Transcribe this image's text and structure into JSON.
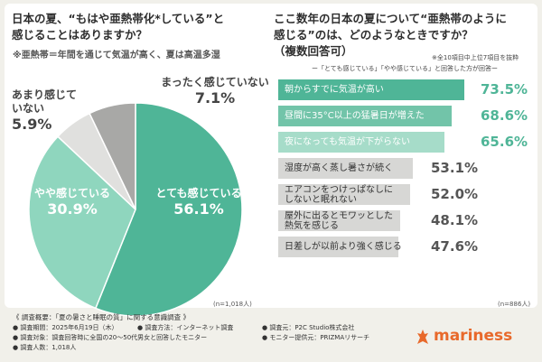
{
  "left": {
    "title_lines": [
      "日本の夏、“もはや亜熱帯化*している”と",
      "感じることはありますか？"
    ],
    "note": "※亜熱帯＝年間を通じて気温が高く、夏は高温多湿",
    "n": "(n=1,018人)"
  },
  "right": {
    "title_lines": [
      "ここ数年の日本の夏について“亜熱帯のように",
      "感じる”のは、どのようなときですか？",
      "（複数回答可）"
    ],
    "note_top": "※全10項目中上位7項目を抜粋",
    "note_sub": "ー「とても感じている」「やや感じている」と回答した方が回答ー",
    "n": "(n=886人)"
  },
  "footer": {
    "heading": "《 調査概要：「夏の暑さと睡眠の質」に関する意識調査 》",
    "period": "● 調査期間：2025年6月19日（木）",
    "method": "● 調査方法：インターネット調査",
    "source": "● 調査元：P2C Studio株式会社",
    "target": "● 調査対象：調査回答時に全国の20〜50代男女と回答したモニター",
    "provider": "● モニター提供元：PRIZMAリサーチ",
    "count": "● 調査人数：1,018人"
  },
  "logo": "mariness",
  "chart_data": [
    {
      "type": "pie",
      "categories": [
        "とても感じている",
        "やや感じている",
        "あまり感じていない",
        "まったく感じていない"
      ],
      "values": [
        56.1,
        30.9,
        5.9,
        7.1
      ],
      "value_labels": [
        "56.1%",
        "30.9%",
        "5.9%",
        "7.1%"
      ],
      "label_lines": [
        [
          "とても感じている"
        ],
        [
          "やや感じている"
        ],
        [
          "あまり感じて",
          "いない"
        ],
        [
          "まったく感じていない"
        ]
      ],
      "colors": [
        "#4fb597",
        "#8fd6be",
        "#e0e0de",
        "#a8a8a6"
      ],
      "title": "日本の夏、“もはや亜熱帯化*している”と感じることはありますか？"
    },
    {
      "type": "bar",
      "orientation": "horizontal",
      "categories": [
        "朝からすでに気温が高い",
        "昼間に35°C以上の猛暑日が増えた",
        "夜になっても気温が下がらない",
        "湿度が高く蒸し暑さが続く",
        "エアコンをつけっぱなしにしないと眠れない",
        "屋外に出るとモワッとした熱気を感じる",
        "日差しが以前より強く感じる"
      ],
      "label_lines": [
        [
          "朝からすでに気温が高い"
        ],
        [
          "昼間に35°C以上の猛暑日が増えた"
        ],
        [
          "夜になっても気温が下がらない"
        ],
        [
          "湿度が高く蒸し暑さが続く"
        ],
        [
          "エアコンをつけっぱなしに",
          "しないと眠れない"
        ],
        [
          "屋外に出るとモワッとした",
          "熱気を感じる"
        ],
        [
          "日差しが以前より強く感じる"
        ]
      ],
      "values": [
        73.5,
        68.6,
        65.6,
        53.1,
        52.0,
        48.1,
        47.6
      ],
      "value_labels": [
        "73.5%",
        "68.6%",
        "65.6%",
        "53.1%",
        "52.0%",
        "48.1%",
        "47.6%"
      ],
      "colors": [
        "#4fb597",
        "#72c4a9",
        "#a6dcc9",
        "#d7d7d5",
        "#d7d7d5",
        "#d7d7d5",
        "#d7d7d5"
      ],
      "value_colors": [
        "#4fb597",
        "#4fb597",
        "#4fb597",
        "#555555",
        "#555555",
        "#555555",
        "#555555"
      ],
      "xlim": [
        0,
        100
      ]
    }
  ]
}
